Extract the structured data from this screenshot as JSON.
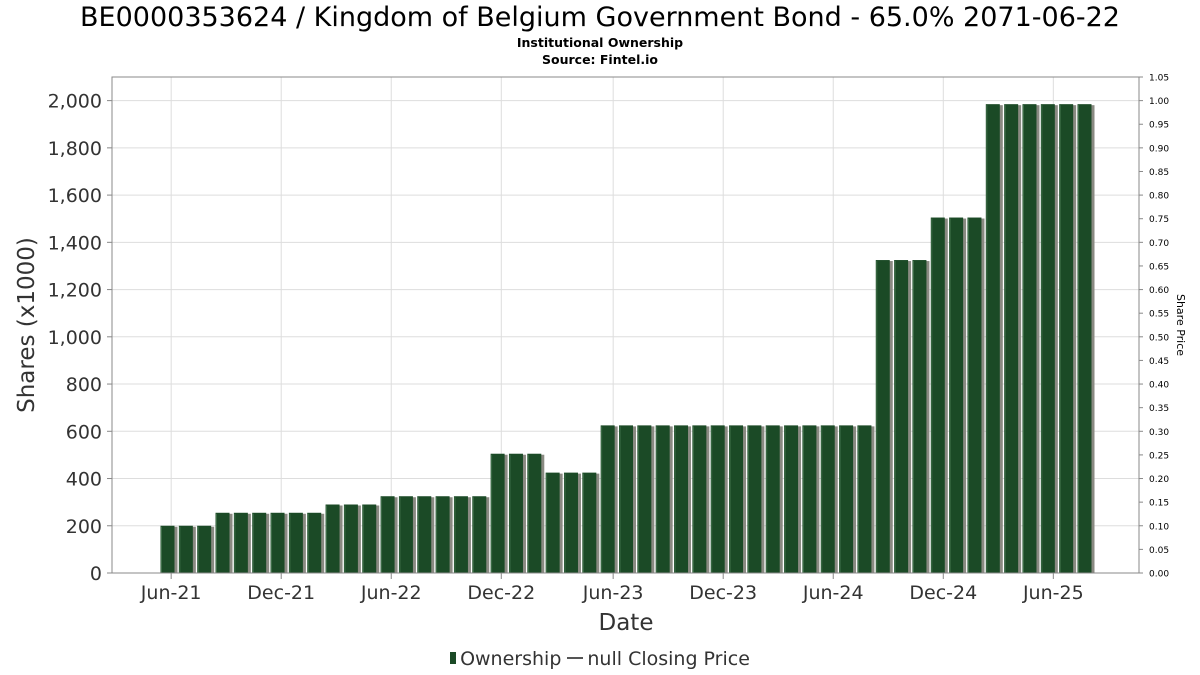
{
  "chart_data": {
    "type": "bar",
    "title": "BE0000353624 / Kingdom of Belgium Government Bond - 65.0% 2071-06-22",
    "subtitle_lines": [
      "Institutional Ownership",
      "Source: Fintel.io"
    ],
    "xlabel": "Date",
    "ylabel": "Shares (x1000)",
    "y2label": "Share Price",
    "ylim": [
      0,
      2100
    ],
    "y2lim": [
      0,
      1.05
    ],
    "yticks": [
      "0",
      "200",
      "400",
      "600",
      "800",
      "1,000",
      "1,200",
      "1,400",
      "1,600",
      "1,800",
      "2,000"
    ],
    "y2ticks": [
      "0.00",
      "0.05",
      "0.10",
      "0.15",
      "0.20",
      "0.25",
      "0.30",
      "0.35",
      "0.40",
      "0.45",
      "0.50",
      "0.55",
      "0.60",
      "0.65",
      "0.70",
      "0.75",
      "0.80",
      "0.85",
      "0.90",
      "0.95",
      "1.00",
      "1.05"
    ],
    "xticks": [
      "Jun-21",
      "Dec-21",
      "Jun-22",
      "Dec-22",
      "Jun-23",
      "Dec-23",
      "Jun-24",
      "Dec-24",
      "Jun-25"
    ],
    "grid": true,
    "legend_position": "bottom",
    "legend": [
      "Ownership",
      "null Closing Price"
    ],
    "colors": {
      "bar": "#1b4a26",
      "bar_shadow": "#8a8a82",
      "grid": "#dddddd",
      "frame": "#888888"
    },
    "series": [
      {
        "name": "Ownership",
        "values": [
          200,
          200,
          200,
          255,
          255,
          255,
          255,
          255,
          255,
          290,
          290,
          290,
          325,
          325,
          325,
          325,
          325,
          325,
          505,
          505,
          505,
          425,
          425,
          425,
          625,
          625,
          625,
          625,
          625,
          625,
          625,
          625,
          625,
          625,
          625,
          625,
          625,
          625,
          625,
          1325,
          1325,
          1325,
          1505,
          1505,
          1505,
          1985,
          1985,
          1985,
          1985,
          1985,
          1985
        ]
      }
    ]
  }
}
